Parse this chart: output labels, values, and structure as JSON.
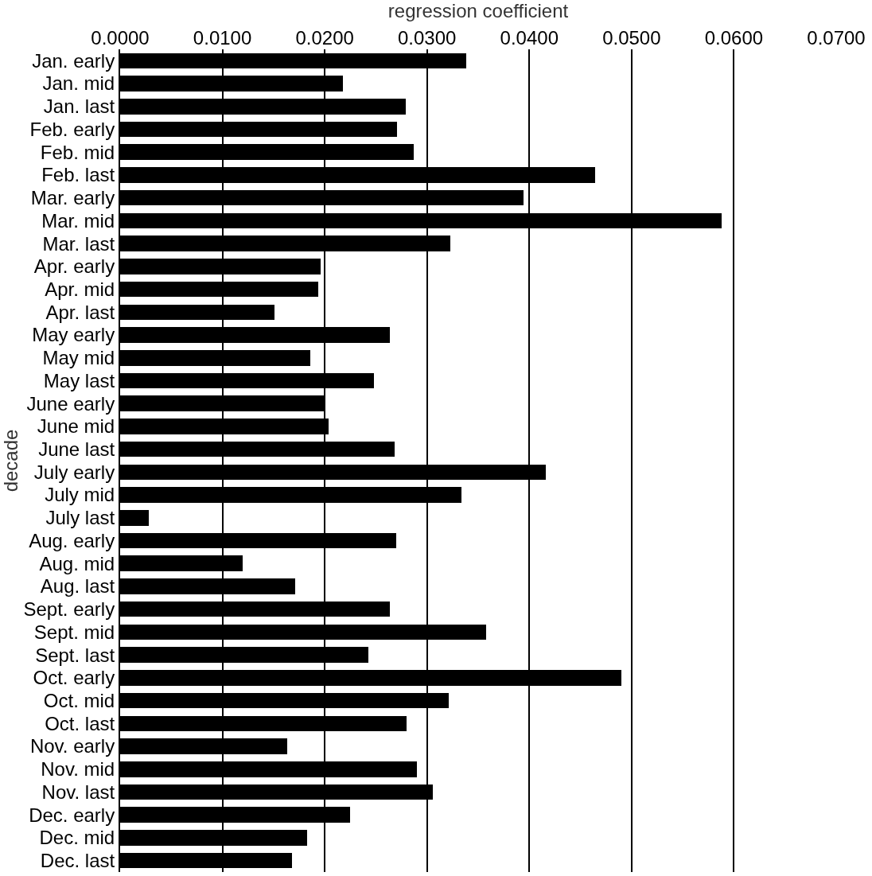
{
  "chart_data": {
    "type": "bar",
    "orientation": "horizontal",
    "xlabel": "regression coefficient",
    "ylabel": "decade",
    "categories": [
      "Jan. early",
      "Jan. mid",
      "Jan. last",
      "Feb. early",
      "Feb. mid",
      "Feb. last",
      "Mar. early",
      "Mar. mid",
      "Mar. last",
      "Apr. early",
      "Apr. mid",
      "Apr. last",
      "May early",
      "May mid",
      "May last",
      "June early",
      "June mid",
      "June last",
      "July early",
      "July mid",
      "July last",
      "Aug. early",
      "Aug. mid",
      "Aug. last",
      "Sept. early",
      "Sept. mid",
      "Sept. last",
      "Oct. early",
      "Oct. mid",
      "Oct. last",
      "Nov. early",
      "Nov. mid",
      "Nov. last",
      "Dec. early",
      "Dec. mid",
      "Dec. last"
    ],
    "values": [
      0.0338,
      0.0218,
      0.0279,
      0.0271,
      0.0287,
      0.0464,
      0.0394,
      0.0588,
      0.0323,
      0.0196,
      0.0194,
      0.0151,
      0.0264,
      0.0186,
      0.0248,
      0.0199,
      0.0204,
      0.0268,
      0.0416,
      0.0334,
      0.0028,
      0.027,
      0.012,
      0.0171,
      0.0264,
      0.0358,
      0.0243,
      0.049,
      0.0321,
      0.028,
      0.0163,
      0.029,
      0.0306,
      0.0225,
      0.0183,
      0.0168
    ],
    "color": "#000000",
    "xlim": [
      0,
      0.07
    ],
    "xticks": [
      {
        "value": 0,
        "label": "0.0000"
      },
      {
        "value": 0.01,
        "label": "0.0100"
      },
      {
        "value": 0.02,
        "label": "0.0200"
      },
      {
        "value": 0.03,
        "label": "0.0300"
      },
      {
        "value": 0.04,
        "label": "0.0400"
      },
      {
        "value": 0.05,
        "label": "0.0500"
      },
      {
        "value": 0.06,
        "label": "0.0600"
      },
      {
        "value": 0.07,
        "label": "0.0700"
      }
    ],
    "grid": "x",
    "legend": false
  }
}
